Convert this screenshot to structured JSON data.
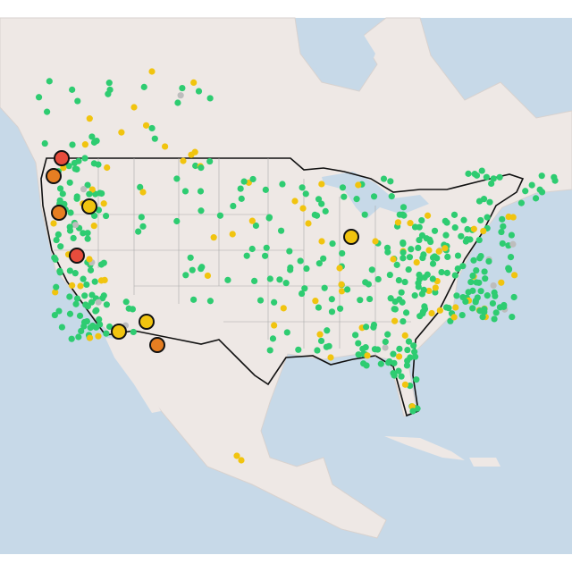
{
  "map": {
    "marker_colors": [
      "#2ecc71",
      "#f1c40f",
      "#e67e22",
      "#e74c3c",
      "#bdbdbd"
    ]
  }
}
